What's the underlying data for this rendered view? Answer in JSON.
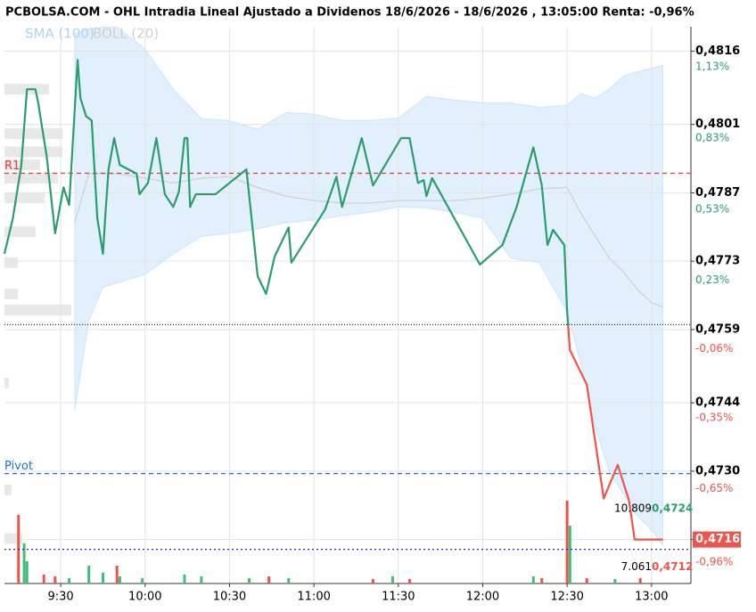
{
  "chart_data": {
    "type": "line",
    "title": "PCBOLSA.COM - OHL Intradia Lineal Ajustado a Dividenos 18/6/2026 - 18/6/2026 , 13:05:00 Renta: -0,96%",
    "xlim": [
      550,
      794
    ],
    "xticks": [
      {
        "value": 570,
        "label": "9:30"
      },
      {
        "value": 600,
        "label": "10:00"
      },
      {
        "value": 630,
        "label": "10:30"
      },
      {
        "value": 660,
        "label": "11:00"
      },
      {
        "value": 690,
        "label": "11:30"
      },
      {
        "value": 720,
        "label": "12:00"
      },
      {
        "value": 750,
        "label": "12:30"
      },
      {
        "value": 780,
        "label": "13:00"
      }
    ],
    "ylim": [
      0.4707,
      0.4821
    ],
    "yticks": [
      {
        "value": 0.4816,
        "label": "0,4816"
      },
      {
        "value": 0.4801,
        "label": "0,4801"
      },
      {
        "value": 0.4787,
        "label": "0,4787"
      },
      {
        "value": 0.4773,
        "label": "0,4773"
      },
      {
        "value": 0.4759,
        "label": "0,4759"
      },
      {
        "value": 0.4744,
        "label": "0,4744"
      },
      {
        "value": 0.473,
        "label": "0,4730"
      },
      {
        "value": 0.4716,
        "label": "0,4716"
      }
    ],
    "y2lim": [
      -1.05,
      1.3
    ],
    "y2ticks": [
      {
        "value": 1.13,
        "label": "1,13%"
      },
      {
        "value": 0.83,
        "label": "0,83%"
      },
      {
        "value": 0.53,
        "label": "0,53%"
      },
      {
        "value": 0.23,
        "label": "0,23%"
      },
      {
        "value": -0.06,
        "label": "-0,06%"
      },
      {
        "value": -0.35,
        "label": "-0,35%"
      },
      {
        "value": -0.65,
        "label": "-0,65%"
      },
      {
        "value": -0.96,
        "label": "-0,96%"
      }
    ],
    "grid": true,
    "x": [
      550,
      553,
      556,
      558,
      561,
      562,
      565,
      568,
      571,
      573,
      576,
      577,
      579,
      581,
      583,
      585,
      586,
      587,
      589,
      591,
      597,
      598,
      601,
      604,
      607,
      610,
      612,
      614,
      615,
      616,
      618,
      625,
      636,
      640,
      643,
      646,
      651,
      652,
      664,
      668,
      670,
      677,
      681,
      691,
      694,
      697,
      699,
      700,
      702,
      719,
      727,
      732,
      738,
      741,
      743,
      745,
      749,
      750,
      751,
      757,
      763,
      768,
      772,
      774,
      784
    ],
    "series": [
      {
        "color_up": "#2a9d6e",
        "color_down": "#f0534a",
        "baseline": 0.476,
        "values": [
          0.47745,
          0.47818,
          0.47927,
          0.48082,
          0.48082,
          0.48054,
          0.47945,
          0.47787,
          0.47881,
          0.47845,
          0.48142,
          0.48064,
          0.48027,
          0.48018,
          0.47818,
          0.47745,
          0.47836,
          0.47918,
          0.47982,
          0.47927,
          0.47909,
          0.47867,
          0.4789,
          0.47982,
          0.47867,
          0.47841,
          0.47872,
          0.47982,
          0.47982,
          0.47841,
          0.47867,
          0.47867,
          0.47918,
          0.47699,
          0.47663,
          0.47739,
          0.47799,
          0.47727,
          0.47836,
          0.47903,
          0.47841,
          0.47982,
          0.47885,
          0.47982,
          0.47982,
          0.4789,
          0.47896,
          0.47863,
          0.479,
          0.47723,
          0.47763,
          0.4784,
          0.47963,
          0.47885,
          0.47763,
          0.47794,
          0.47763,
          0.47626,
          0.47548,
          0.47477,
          0.47244,
          0.47313,
          0.4724,
          0.4716,
          0.4716
        ]
      }
    ],
    "indicator_x": [
      575,
      580,
      585,
      590,
      600,
      610,
      620,
      630,
      640,
      650,
      660,
      670,
      680,
      690,
      700,
      710,
      720,
      730,
      740,
      750,
      755,
      760,
      765,
      770,
      775,
      780,
      784
    ],
    "band": {
      "name": "SMA (100)",
      "color": "#a9d3f5",
      "upper": [
        0.48195,
        0.48206,
        0.48209,
        0.48209,
        0.48164,
        0.48082,
        0.48022,
        0.48018,
        0.48,
        0.48034,
        0.48031,
        0.48018,
        0.48018,
        0.48023,
        0.48067,
        0.4806,
        0.48054,
        0.48054,
        0.48045,
        0.48049,
        0.48073,
        0.48064,
        0.48082,
        0.48109,
        0.48118,
        0.48125,
        0.48131
      ],
      "lower": [
        0.47426,
        0.47608,
        0.47677,
        0.47685,
        0.47703,
        0.47745,
        0.47781,
        0.47787,
        0.47796,
        0.47809,
        0.47814,
        0.47823,
        0.4783,
        0.47841,
        0.47839,
        0.4783,
        0.47818,
        0.47736,
        0.47727,
        0.47626,
        0.47517,
        0.4739,
        0.47299,
        0.47253,
        0.47208,
        0.4718,
        0.47149
      ]
    },
    "middle": {
      "name": "BOLL (20)",
      "color": "#cfcfcf",
      "values": [
        0.47809,
        0.47909,
        0.47909,
        0.47909,
        0.479,
        0.4789,
        0.479,
        0.47903,
        0.47881,
        0.47863,
        0.47854,
        0.47849,
        0.47849,
        0.47854,
        0.47854,
        0.47854,
        0.47859,
        0.47867,
        0.47878,
        0.47881,
        0.47827,
        0.47781,
        0.47736,
        0.47708,
        0.47672,
        0.47645,
        0.47636
      ]
    },
    "levels": [
      {
        "name": "R1",
        "value": 0.4791,
        "color": "#e53935",
        "style": "dashed"
      },
      {
        "name": "Pivot",
        "value": 0.47295,
        "color": "#1e6fd9",
        "style": "dashed"
      },
      {
        "value": 0.4714,
        "color": "#2222dd",
        "style": "dotted"
      }
    ],
    "volume": {
      "vlim": [
        0,
        100
      ],
      "x": [
        555,
        557,
        558,
        564,
        568,
        573,
        580,
        585,
        590,
        591,
        599,
        614,
        620,
        637,
        644,
        651,
        681,
        688,
        694,
        738,
        741,
        750,
        751,
        757,
        767,
        776
      ],
      "values": [
        77,
        45,
        25,
        10,
        8,
        6,
        20,
        12,
        20,
        8,
        6,
        10,
        8,
        6,
        8,
        6,
        5,
        8,
        5,
        8,
        6,
        93,
        65,
        6,
        5,
        6
      ],
      "colors": [
        "#f0534a",
        "#3cbf7a",
        "#3cbf7a",
        "#f0534a",
        "#f0534a",
        "#3cbf7a",
        "#3cbf7a",
        "#3cbf7a",
        "#f0534a",
        "#3cbf7a",
        "#3cbf7a",
        "#3cbf7a",
        "#3cbf7a",
        "#3cbf7a",
        "#f0534a",
        "#3cbf7a",
        "#f0534a",
        "#3cbf7a",
        "#f0534a",
        "#3cbf7a",
        "#f0534a",
        "#f0534a",
        "#3cbf7a",
        "#f0534a",
        "#3cbf7a",
        "#f0534a"
      ]
    },
    "profile": {
      "xlim": [
        0,
        100
      ],
      "color": "#e8e8e8",
      "prices": [
        0.48082,
        0.47991,
        0.47954,
        0.47927,
        0.479,
        0.4786,
        0.4779,
        0.47727,
        0.47663,
        0.4763,
        0.47481,
        0.47262,
        0.47162
      ],
      "values": [
        50,
        65,
        65,
        40,
        60,
        45,
        35,
        15,
        15,
        75,
        5,
        8,
        20
      ]
    },
    "last_price": {
      "value": 0.4716,
      "label": "0,4716",
      "color": "#f0534a"
    },
    "bid": {
      "value": 0.4724,
      "label": "0,4724",
      "size": "10.809",
      "color": "#2a9d6e"
    },
    "ask": {
      "value": 0.4712,
      "label": "0,4712",
      "size": "7.061",
      "color": "#f0534a"
    }
  }
}
